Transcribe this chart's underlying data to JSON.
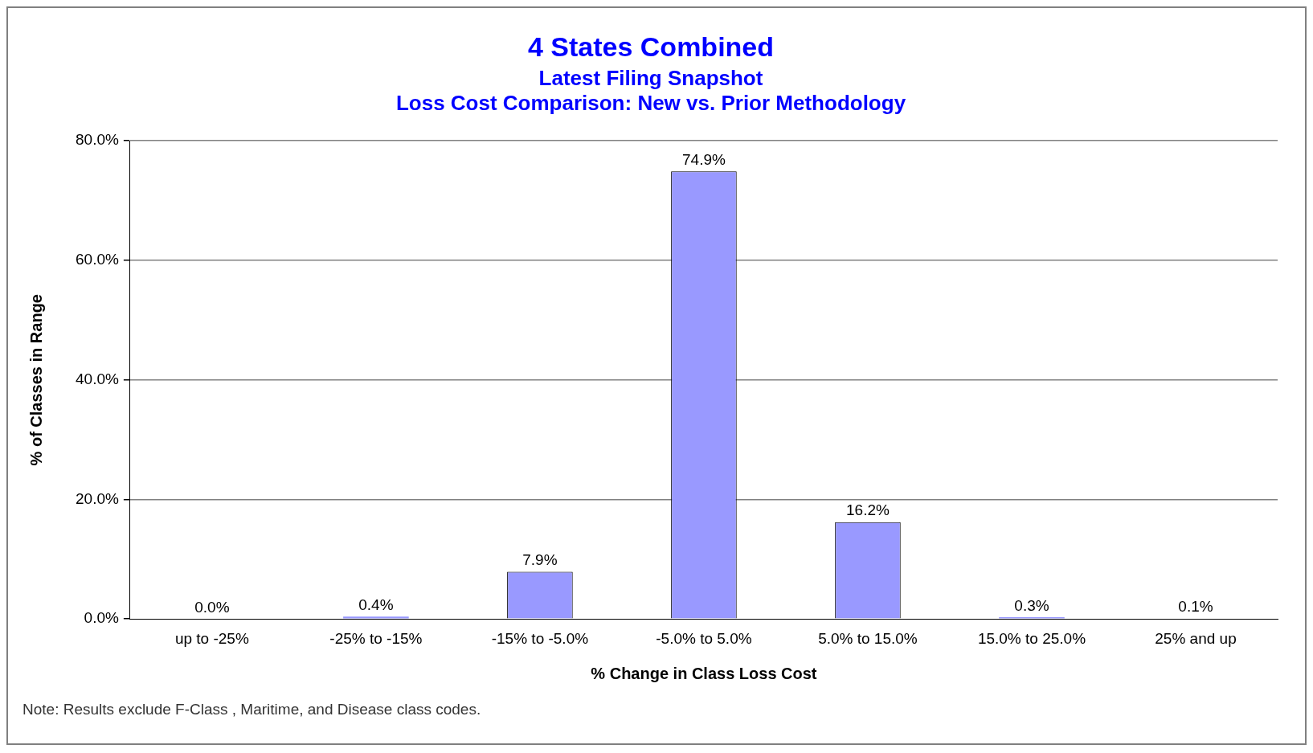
{
  "chart_data": {
    "type": "bar",
    "title": "4 States Combined",
    "subtitle": "Latest Filing Snapshot\nLoss Cost Comparison: New vs. Prior Methodology",
    "xlabel": "% Change in Class Loss Cost",
    "ylabel": "% of Classes in Range",
    "categories": [
      "up to -25%",
      "-25% to -15%",
      "-15% to -5.0%",
      "-5.0% to 5.0%",
      "5.0% to 15.0%",
      "15.0% to 25.0%",
      "25% and up"
    ],
    "values": [
      0.0,
      0.4,
      7.9,
      74.9,
      16.2,
      0.3,
      0.1
    ],
    "value_labels": [
      "0.0%",
      "0.4%",
      "7.9%",
      "74.9%",
      "16.2%",
      "0.3%",
      "0.1%"
    ],
    "color": "#9999ff",
    "ylim": [
      0,
      80
    ],
    "yticks": [
      {
        "value": 0,
        "label": "0.0%"
      },
      {
        "value": 20,
        "label": "20.0%"
      },
      {
        "value": 40,
        "label": "40.0%"
      },
      {
        "value": 60,
        "label": "60.0%"
      },
      {
        "value": 80,
        "label": "80.0%"
      }
    ],
    "grid": "y",
    "legend": false,
    "annotations": [
      "Note: Results exclude F-Class , Maritime, and Disease class codes."
    ]
  }
}
